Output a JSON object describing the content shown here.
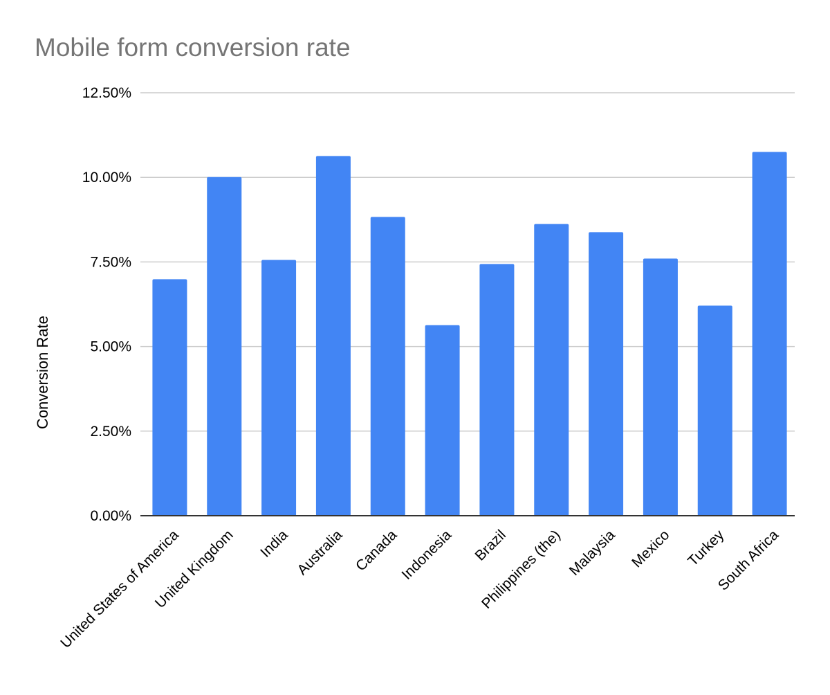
{
  "chart_data": {
    "type": "bar",
    "title": "Mobile form conversion rate",
    "xlabel": "",
    "ylabel": "Conversion Rate",
    "categories": [
      "United States of America",
      "United Kingdom",
      "India",
      "Australia",
      "Canada",
      "Indonesia",
      "Brazil",
      "Philippines (the)",
      "Malaysia",
      "Mexico",
      "Turkey",
      "South Africa"
    ],
    "values": [
      6.99,
      10.01,
      7.56,
      10.63,
      8.83,
      5.63,
      7.44,
      8.62,
      8.38,
      7.6,
      6.21,
      10.75
    ],
    "ylim": [
      0,
      12.5
    ],
    "yticks": [
      "0.00%",
      "2.50%",
      "5.00%",
      "7.50%",
      "10.00%",
      "12.50%"
    ],
    "ytick_values": [
      0,
      2.5,
      5,
      7.5,
      10,
      12.5
    ],
    "grid": true,
    "legend": "none",
    "bar_color": "#4285f4"
  }
}
